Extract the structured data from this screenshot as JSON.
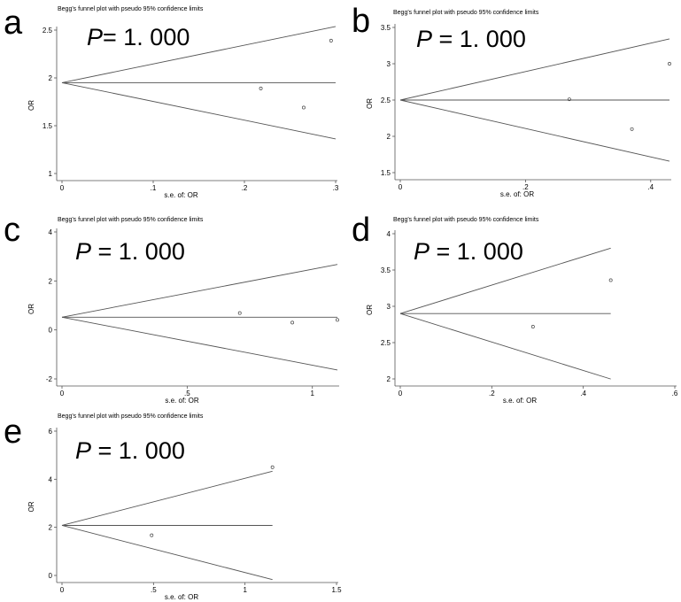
{
  "chart_data": [
    {
      "type": "scatter",
      "panel_letter": "a",
      "title": "Begg's funnel plot with pseudo 95% confidence limits",
      "annotation": "P= 1. 000",
      "annotation_p": "P",
      "annotation_rest": "= 1. 000",
      "xlabel": "s.e. of: OR",
      "ylabel": "OR",
      "xlim": [
        0,
        0.3
      ],
      "ylim": [
        1,
        2.5
      ],
      "xticks": [
        0,
        0.1,
        0.2,
        0.3
      ],
      "xtick_labels": [
        "0",
        ".1",
        ".2",
        ".3"
      ],
      "yticks": [
        1,
        1.5,
        2,
        2.5
      ],
      "ytick_labels": [
        "1",
        "1.5",
        "2",
        "2.5"
      ],
      "pooled": 1.95,
      "funnel_max_se": 0.3,
      "points": [
        {
          "x": 0.218,
          "y": 1.89
        },
        {
          "x": 0.265,
          "y": 1.69
        },
        {
          "x": 0.295,
          "y": 2.39
        }
      ]
    },
    {
      "type": "scatter",
      "panel_letter": "b",
      "title": "Begg's funnel plot with pseudo 95% confidence limits",
      "annotation": "P = 1. 000",
      "annotation_p": "P",
      "annotation_rest": " = 1. 000",
      "xlabel": "s.e. of: OR",
      "ylabel": "OR",
      "xlim": [
        0,
        0.43
      ],
      "ylim": [
        1.5,
        3.5
      ],
      "xticks": [
        0,
        0.2,
        0.4
      ],
      "xtick_labels": [
        "0",
        ".2",
        ".4"
      ],
      "yticks": [
        1.5,
        2,
        2.5,
        3,
        3.5
      ],
      "ytick_labels": [
        "1.5",
        "2",
        "2.5",
        "3",
        "3.5"
      ],
      "pooled": 2.5,
      "funnel_max_se": 0.43,
      "points": [
        {
          "x": 0.27,
          "y": 2.51
        },
        {
          "x": 0.37,
          "y": 2.1
        },
        {
          "x": 0.43,
          "y": 3.0
        }
      ]
    },
    {
      "type": "scatter",
      "panel_letter": "c",
      "title": "Begg's funnel plot with pseudo 95% confidence limits",
      "annotation": "P = 1. 000",
      "annotation_p": "P",
      "annotation_rest": " = 1. 000",
      "xlabel": "s.e. of: OR",
      "ylabel": "OR",
      "xlim": [
        0,
        1.1
      ],
      "ylim": [
        -2,
        4
      ],
      "xticks": [
        0,
        0.5,
        1
      ],
      "xtick_labels": [
        "0",
        ".5",
        "1"
      ],
      "yticks": [
        -2,
        0,
        2,
        4
      ],
      "ytick_labels": [
        "-2",
        "0",
        "2",
        "4"
      ],
      "pooled": 0.52,
      "funnel_max_se": 1.1,
      "points": [
        {
          "x": 0.71,
          "y": 0.69
        },
        {
          "x": 0.92,
          "y": 0.3
        },
        {
          "x": 1.1,
          "y": 0.41
        }
      ]
    },
    {
      "type": "scatter",
      "panel_letter": "d",
      "title": "Begg's funnel plot with pseudo 95% confidence limits",
      "annotation": "P = 1. 000",
      "annotation_p": "P",
      "annotation_rest": " = 1. 000",
      "xlabel": "s.e. of: OR",
      "ylabel": "OR",
      "xlim": [
        0,
        0.6
      ],
      "ylim": [
        2,
        4
      ],
      "xticks": [
        0,
        0.2,
        0.4,
        0.6
      ],
      "xtick_labels": [
        "0",
        ".2",
        ".4",
        ".6"
      ],
      "yticks": [
        2,
        2.5,
        3,
        3.5,
        4
      ],
      "ytick_labels": [
        "2",
        "2.5",
        "3",
        "3.5",
        "4"
      ],
      "pooled": 2.9,
      "funnel_max_se": 0.46,
      "points": [
        {
          "x": 0.29,
          "y": 2.72
        },
        {
          "x": 0.46,
          "y": 3.36
        }
      ]
    },
    {
      "type": "scatter",
      "panel_letter": "e",
      "title": "Begg's funnel plot with pseudo 95% confidence limits",
      "annotation": "P = 1. 000",
      "annotation_p": "P",
      "annotation_rest": " = 1. 000",
      "xlabel": "s.e. of: OR",
      "ylabel": "OR",
      "xlim": [
        0,
        1.5
      ],
      "ylim": [
        0,
        6
      ],
      "xticks": [
        0,
        0.5,
        1,
        1.5
      ],
      "xtick_labels": [
        "0",
        ".5",
        "1",
        "1.5"
      ],
      "yticks": [
        0,
        2,
        4,
        6
      ],
      "ytick_labels": [
        "0",
        "2",
        "4",
        "6"
      ],
      "pooled": 2.08,
      "funnel_max_se": 1.15,
      "points": [
        {
          "x": 0.49,
          "y": 1.67
        },
        {
          "x": 1.15,
          "y": 4.5
        }
      ]
    }
  ]
}
